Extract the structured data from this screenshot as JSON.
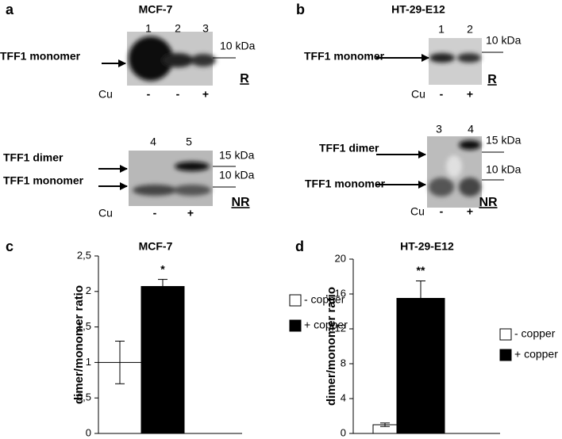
{
  "panel_a": {
    "letter": "a",
    "title": "MCF-7",
    "blot_r": {
      "lanes": [
        "1",
        "2",
        "3"
      ],
      "cu_label": "Cu",
      "cu": [
        "-",
        "-",
        "+"
      ],
      "markers": [
        "10 kDa"
      ],
      "band_labels": [
        "TFF1 monomer"
      ],
      "condition": "R"
    },
    "blot_nr": {
      "lanes": [
        "4",
        "5"
      ],
      "cu_label": "Cu",
      "cu": [
        "-",
        "+"
      ],
      "markers": [
        "15 kDa",
        "10 kDa"
      ],
      "band_labels": [
        "TFF1 dimer",
        "TFF1 monomer"
      ],
      "condition": "NR"
    }
  },
  "panel_b": {
    "letter": "b",
    "title": "HT-29-E12",
    "blot_r": {
      "lanes": [
        "1",
        "2"
      ],
      "cu_label": "Cu",
      "cu": [
        "-",
        "+"
      ],
      "markers": [
        "10 kDa"
      ],
      "band_labels": [
        "TFF1 monomer"
      ],
      "condition": "R"
    },
    "blot_nr": {
      "lanes": [
        "3",
        "4"
      ],
      "cu_label": "Cu",
      "cu": [
        "-",
        "+"
      ],
      "markers": [
        "15 kDa",
        "10 kDa"
      ],
      "band_labels": [
        "TFF1 dimer",
        "TFF1 monomer"
      ],
      "condition": "NR"
    }
  },
  "chart_data": [
    {
      "type": "bar",
      "letter": "c",
      "title": "MCF-7",
      "y_label": "dimer/monomer ratio",
      "ylim": [
        0,
        2.5
      ],
      "yticks": [
        0,
        {
          "value": 0.5,
          "label": "0,5"
        },
        1,
        {
          "value": 1.5,
          "label": "1,5"
        },
        2,
        {
          "value": 2.5,
          "label": "2,5"
        }
      ],
      "series": [
        {
          "name": "- copper",
          "color": "#ffffff",
          "values": [
            1
          ],
          "errors": [
            0.3
          ]
        },
        {
          "name": "+ copper",
          "color": "#000000",
          "values": [
            2.07
          ],
          "errors": [
            0.1
          ]
        }
      ],
      "annotation": "*"
    },
    {
      "type": "bar",
      "letter": "d",
      "title": "HT-29-E12",
      "y_label": "dimer/monomer ratio",
      "ylim": [
        0,
        20
      ],
      "yticks": [
        0,
        4,
        8,
        12,
        16,
        20
      ],
      "series": [
        {
          "name": "- copper",
          "color": "#ffffff",
          "values": [
            1
          ],
          "errors": [
            0.2
          ]
        },
        {
          "name": "+ copper",
          "color": "#000000",
          "values": [
            15.5
          ],
          "errors": [
            2
          ]
        }
      ],
      "annotation": "**"
    }
  ]
}
